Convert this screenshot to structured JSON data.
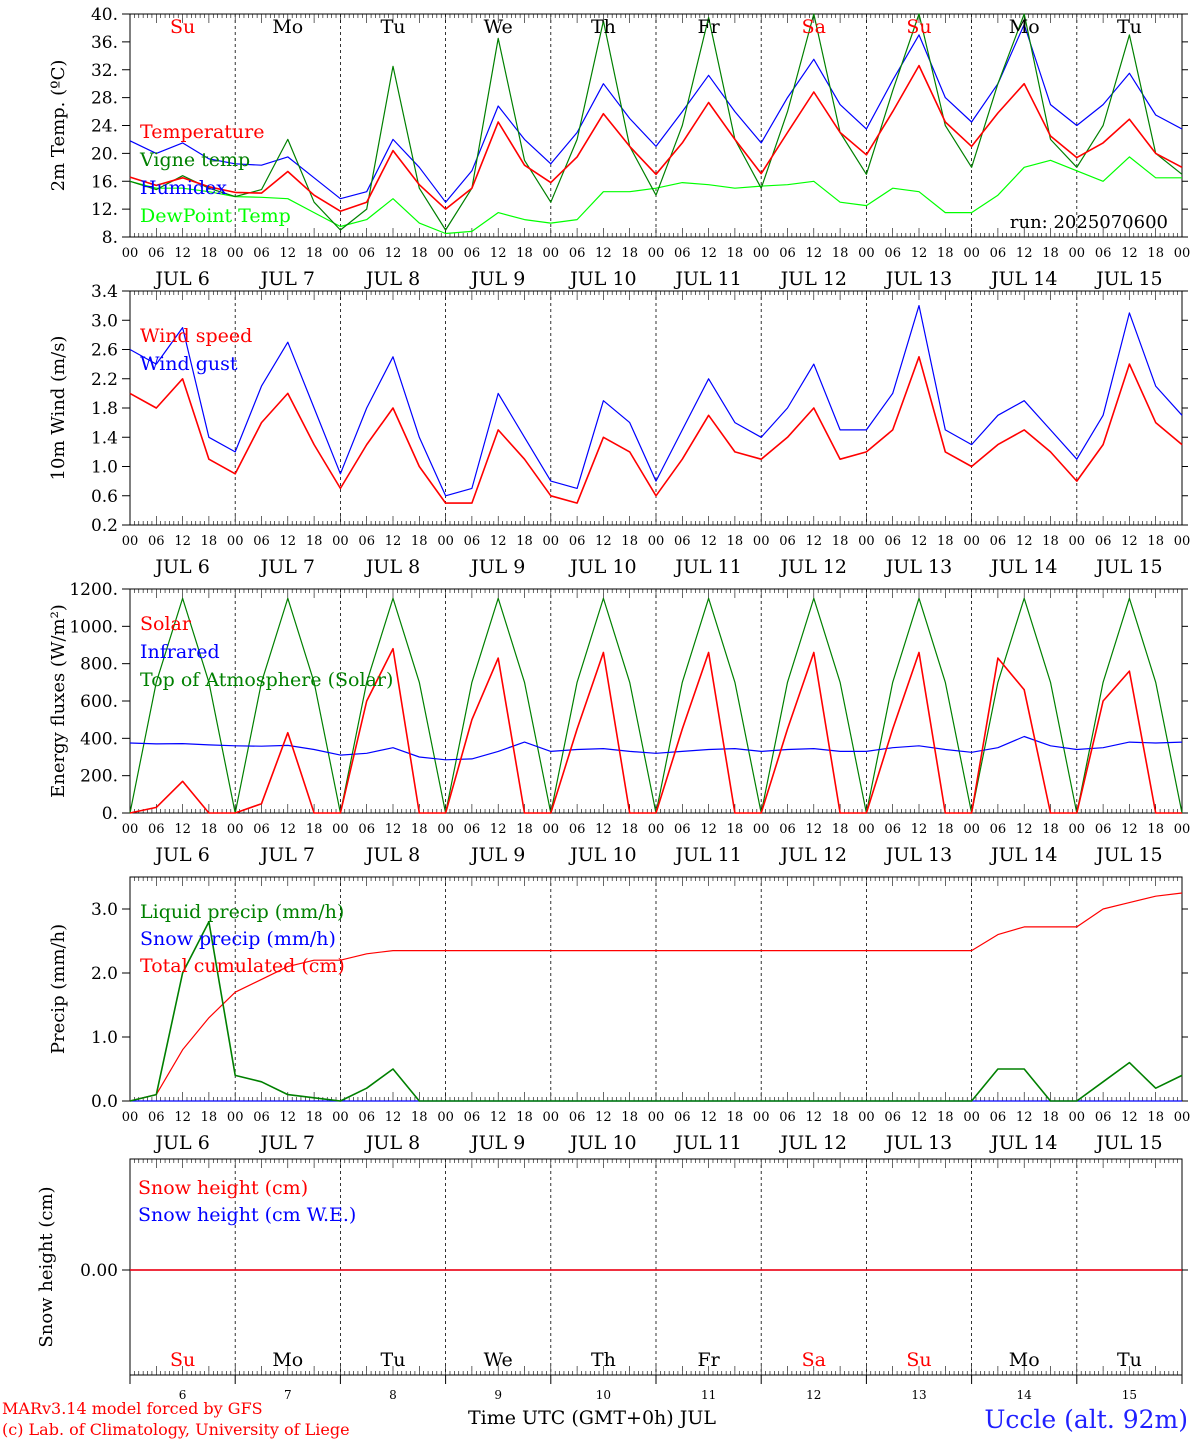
{
  "chart_data": [
    {
      "type": "line",
      "ylabel": "2m Temp. (ºC)",
      "ylim": [
        8,
        40
      ],
      "yticks": [
        "8.",
        "12.",
        "16.",
        "20.",
        "24.",
        "28.",
        "32.",
        "36.",
        "40."
      ],
      "annotation": "run: 2025070600",
      "x": [
        0,
        6,
        12,
        18,
        24,
        30,
        36,
        42,
        48,
        54,
        60,
        66,
        72,
        78,
        84,
        90,
        96,
        102,
        108,
        114,
        120,
        126,
        132,
        138,
        144,
        150,
        156,
        162,
        168,
        174,
        180,
        186,
        192,
        198,
        204,
        210,
        216,
        222,
        228,
        234,
        240
      ],
      "series": [
        {
          "name": "Temperature",
          "color": "#ff0000",
          "values": [
            16.6,
            15.4,
            16.5,
            15.2,
            14.4,
            14.3,
            17.4,
            14.0,
            11.7,
            13.0,
            20.4,
            15.5,
            12.0,
            15.0,
            24.5,
            18.3,
            15.8,
            19.5,
            25.7,
            21.0,
            17.0,
            21.5,
            27.3,
            22.0,
            17.1,
            23.0,
            28.8,
            23.0,
            19.8,
            26.0,
            32.6,
            24.5,
            21.0,
            25.8,
            30.0,
            22.5,
            19.4,
            21.5,
            24.9,
            20.0,
            18.0
          ]
        },
        {
          "name": "Vigne temp",
          "color": "#008000",
          "values": [
            16.0,
            14.8,
            16.8,
            15.0,
            13.8,
            14.8,
            22.0,
            13.0,
            9.0,
            12.0,
            32.5,
            15.0,
            9.0,
            15.0,
            36.5,
            19.0,
            13.0,
            22.0,
            39.0,
            21.0,
            14.0,
            24.0,
            39.5,
            22.0,
            15.0,
            26.0,
            40.0,
            23.0,
            17.0,
            29.0,
            40.0,
            24.0,
            18.0,
            30.0,
            40.0,
            22.0,
            18.0,
            24.0,
            37.0,
            20.0,
            17.0
          ]
        },
        {
          "name": "Humidex",
          "color": "#0000ff",
          "values": [
            21.8,
            20.0,
            21.5,
            19.2,
            18.5,
            18.3,
            19.5,
            16.5,
            13.5,
            14.5,
            22.0,
            18.0,
            13.0,
            17.5,
            26.8,
            22.0,
            18.5,
            23.0,
            30.0,
            25.0,
            21.0,
            26.0,
            31.2,
            26.0,
            21.5,
            28.0,
            33.5,
            27.0,
            23.5,
            30.5,
            37.0,
            28.0,
            24.5,
            30.0,
            38.5,
            27.0,
            24.0,
            27.0,
            31.5,
            25.5,
            23.5
          ]
        },
        {
          "name": "DewPoint Temp",
          "color": "#00ff00",
          "values": [
            16.0,
            15.0,
            15.0,
            14.5,
            13.8,
            13.7,
            13.5,
            11.5,
            9.5,
            10.5,
            13.5,
            10.0,
            8.5,
            8.8,
            11.5,
            10.5,
            10.0,
            10.5,
            14.5,
            14.5,
            15.0,
            15.8,
            15.5,
            15.0,
            15.3,
            15.5,
            16.0,
            13.0,
            12.5,
            15.0,
            14.5,
            11.5,
            11.5,
            14.0,
            18.0,
            19.0,
            17.5,
            16.0,
            19.5,
            16.5,
            16.5
          ]
        }
      ]
    },
    {
      "type": "line",
      "ylabel": "10m Wind (m/s)",
      "ylim": [
        0.2,
        3.4
      ],
      "yticks": [
        "0.2",
        "0.6",
        "1.0",
        "1.4",
        "1.8",
        "2.2",
        "2.6",
        "3.0",
        "3.4"
      ],
      "x": [
        0,
        6,
        12,
        18,
        24,
        30,
        36,
        42,
        48,
        54,
        60,
        66,
        72,
        78,
        84,
        90,
        96,
        102,
        108,
        114,
        120,
        126,
        132,
        138,
        144,
        150,
        156,
        162,
        168,
        174,
        180,
        186,
        192,
        198,
        204,
        210,
        216,
        222,
        228,
        234,
        240
      ],
      "series": [
        {
          "name": "Wind speed",
          "color": "#ff0000",
          "values": [
            2.0,
            1.8,
            2.2,
            1.1,
            0.9,
            1.6,
            2.0,
            1.3,
            0.7,
            1.3,
            1.8,
            1.0,
            0.5,
            0.5,
            1.5,
            1.1,
            0.6,
            0.5,
            1.4,
            1.2,
            0.6,
            1.1,
            1.7,
            1.2,
            1.1,
            1.4,
            1.8,
            1.1,
            1.2,
            1.5,
            2.5,
            1.2,
            1.0,
            1.3,
            1.5,
            1.2,
            0.8,
            1.3,
            2.4,
            1.6,
            1.3
          ]
        },
        {
          "name": "Wind gust",
          "color": "#0000ff",
          "values": [
            2.6,
            2.4,
            2.9,
            1.4,
            1.2,
            2.1,
            2.7,
            1.8,
            0.9,
            1.8,
            2.5,
            1.4,
            0.6,
            0.7,
            2.0,
            1.4,
            0.8,
            0.7,
            1.9,
            1.6,
            0.8,
            1.5,
            2.2,
            1.6,
            1.4,
            1.8,
            2.4,
            1.5,
            1.5,
            2.0,
            3.2,
            1.5,
            1.3,
            1.7,
            1.9,
            1.5,
            1.1,
            1.7,
            3.1,
            2.1,
            1.7
          ]
        }
      ]
    },
    {
      "type": "line",
      "ylabel": "Energy fluxes (W/m²)",
      "ylim": [
        0,
        1200
      ],
      "yticks": [
        "0.",
        "200.",
        "400.",
        "600.",
        "800.",
        "1000.",
        "1200."
      ],
      "x": [
        0,
        6,
        12,
        18,
        24,
        30,
        36,
        42,
        48,
        54,
        60,
        66,
        72,
        78,
        84,
        90,
        96,
        102,
        108,
        114,
        120,
        126,
        132,
        138,
        144,
        150,
        156,
        162,
        168,
        174,
        180,
        186,
        192,
        198,
        204,
        210,
        216,
        222,
        228,
        234,
        240
      ],
      "series": [
        {
          "name": "Solar",
          "color": "#ff0000",
          "values": [
            0,
            30,
            170,
            0,
            0,
            50,
            430,
            0,
            0,
            600,
            880,
            0,
            0,
            500,
            830,
            0,
            0,
            450,
            860,
            0,
            0,
            450,
            860,
            0,
            0,
            450,
            860,
            0,
            0,
            450,
            860,
            0,
            0,
            830,
            660,
            0,
            0,
            600,
            760,
            0,
            0
          ]
        },
        {
          "name": "Infrared",
          "color": "#0000ff",
          "values": [
            375,
            370,
            372,
            365,
            360,
            358,
            362,
            340,
            310,
            320,
            350,
            300,
            285,
            290,
            330,
            380,
            330,
            340,
            345,
            330,
            320,
            330,
            340,
            345,
            330,
            340,
            345,
            330,
            330,
            350,
            360,
            340,
            325,
            350,
            410,
            360,
            340,
            350,
            380,
            375,
            380
          ]
        },
        {
          "name": "Top of Atmosphere (Solar)",
          "color": "#008000",
          "values": [
            0,
            700,
            1150,
            700,
            0,
            700,
            1150,
            700,
            0,
            700,
            1150,
            700,
            0,
            700,
            1150,
            700,
            0,
            700,
            1150,
            700,
            0,
            700,
            1150,
            700,
            0,
            700,
            1150,
            700,
            0,
            700,
            1150,
            700,
            0,
            700,
            1150,
            700,
            0,
            700,
            1150,
            700,
            0
          ]
        }
      ]
    },
    {
      "type": "line",
      "ylabel": "Precip (mm/h)",
      "ylim": [
        0,
        3.5
      ],
      "yticks": [
        "0.0",
        "1.0",
        "2.0",
        "3.0"
      ],
      "x": [
        0,
        6,
        12,
        18,
        24,
        30,
        36,
        42,
        48,
        54,
        60,
        66,
        72,
        78,
        84,
        90,
        96,
        102,
        108,
        114,
        120,
        126,
        132,
        138,
        144,
        150,
        156,
        162,
        168,
        174,
        180,
        186,
        192,
        198,
        204,
        210,
        216,
        222,
        228,
        234,
        240
      ],
      "series": [
        {
          "name": "Liquid precip (mm/h)",
          "color": "#008000",
          "values": [
            0.0,
            0.1,
            2.0,
            2.8,
            0.4,
            0.3,
            0.1,
            0.05,
            0.0,
            0.2,
            0.5,
            0.0,
            0.0,
            0.0,
            0.0,
            0.0,
            0.0,
            0.0,
            0.0,
            0.0,
            0.0,
            0.0,
            0.0,
            0.0,
            0.0,
            0.0,
            0.0,
            0.0,
            0.0,
            0.0,
            0.0,
            0.0,
            0.0,
            0.5,
            0.5,
            0.0,
            0.0,
            0.3,
            0.6,
            0.2,
            0.4
          ]
        },
        {
          "name": "Snow precip (mm/h)",
          "color": "#0000ff",
          "values": [
            0,
            0,
            0,
            0,
            0,
            0,
            0,
            0,
            0,
            0,
            0,
            0,
            0,
            0,
            0,
            0,
            0,
            0,
            0,
            0,
            0,
            0,
            0,
            0,
            0,
            0,
            0,
            0,
            0,
            0,
            0,
            0,
            0,
            0,
            0,
            0,
            0,
            0,
            0,
            0,
            0
          ]
        },
        {
          "name": "Total cumulated (cm)",
          "color": "#ff0000",
          "values": [
            0.0,
            0.1,
            0.8,
            1.3,
            1.7,
            1.9,
            2.1,
            2.2,
            2.2,
            2.3,
            2.35,
            2.35,
            2.35,
            2.35,
            2.35,
            2.35,
            2.35,
            2.35,
            2.35,
            2.35,
            2.35,
            2.35,
            2.35,
            2.35,
            2.35,
            2.35,
            2.35,
            2.35,
            2.35,
            2.35,
            2.35,
            2.35,
            2.35,
            2.6,
            2.72,
            2.72,
            2.72,
            3.0,
            3.1,
            3.2,
            3.25
          ]
        }
      ]
    },
    {
      "type": "line",
      "ylabel": "Snow height (cm)",
      "yticks": [
        "0.00"
      ],
      "xlabel": "Time UTC (GMT+0h) JUL",
      "x": [
        0,
        240
      ],
      "series": [
        {
          "name": "Snow height (cm)",
          "color": "#ff0000",
          "values": [
            0,
            0
          ]
        },
        {
          "name": "Snow height (cm W.E.)",
          "color": "#0000ff",
          "values": [
            0,
            0
          ]
        }
      ]
    }
  ],
  "days": [
    {
      "abbr": "Su",
      "weekend": true,
      "date": "JUL 6",
      "num": "6"
    },
    {
      "abbr": "Mo",
      "weekend": false,
      "date": "JUL 7",
      "num": "7"
    },
    {
      "abbr": "Tu",
      "weekend": false,
      "date": "JUL 8",
      "num": "8"
    },
    {
      "abbr": "We",
      "weekend": false,
      "date": "JUL 9",
      "num": "9"
    },
    {
      "abbr": "Th",
      "weekend": false,
      "date": "JUL 10",
      "num": "10"
    },
    {
      "abbr": "Fr",
      "weekend": false,
      "date": "JUL 11",
      "num": "11"
    },
    {
      "abbr": "Sa",
      "weekend": true,
      "date": "JUL 12",
      "num": "12"
    },
    {
      "abbr": "Su",
      "weekend": true,
      "date": "JUL 13",
      "num": "13"
    },
    {
      "abbr": "Mo",
      "weekend": false,
      "date": "JUL 14",
      "num": "14"
    },
    {
      "abbr": "Tu",
      "weekend": false,
      "date": "JUL 15",
      "num": "15"
    }
  ],
  "hour_labels": [
    "00",
    "06",
    "12",
    "18"
  ],
  "footer": {
    "model": "MARv3.14 model forced by GFS",
    "copyright": "(c) Lab. of Climatology, University of Liege",
    "station": "Uccle (alt. 92m)"
  },
  "colors": {
    "weekend": "#ff0000",
    "weekday": "#000000",
    "footer_left": "#ff0000",
    "station": "#2020ff"
  }
}
